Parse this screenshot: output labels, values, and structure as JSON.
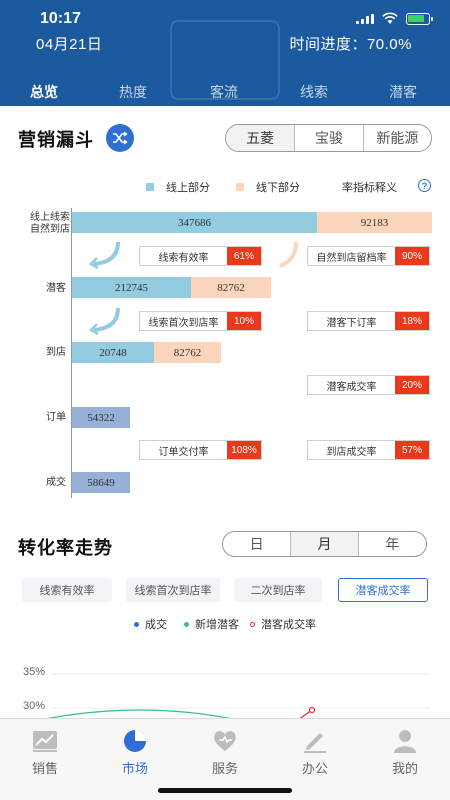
{
  "status": {
    "time": "10:17"
  },
  "header": {
    "date": "04月21日",
    "progress": "时间进度：70.0%",
    "tabs": [
      "总览",
      "热度",
      "客流",
      "线索",
      "潜客"
    ],
    "active_tab": 0
  },
  "funnel": {
    "title": "营销漏斗",
    "brands": [
      "五菱",
      "宝骏",
      "新能源"
    ],
    "legend": {
      "online": "线上部分",
      "offline": "线下部分",
      "definition": "率指标释义",
      "help": "?"
    },
    "rows": {
      "leads": {
        "label_line1": "线上线索",
        "label_line2": "自然到店",
        "online": "347686",
        "offline": "92183"
      },
      "prospects": {
        "label": "潜客",
        "online": "212745",
        "offline": "82762"
      },
      "visits": {
        "label": "到店",
        "online": "20748",
        "offline": "82762"
      },
      "orders": {
        "label": "订单",
        "value": "54322"
      },
      "deals": {
        "label": "成交",
        "value": "58649"
      }
    },
    "rates": {
      "lead_valid": {
        "label": "线索有效率",
        "value": "61%"
      },
      "natural_retain": {
        "label": "自然到店留档率",
        "value": "90%"
      },
      "lead_first_visit": {
        "label": "线索首次到店率",
        "value": "10%"
      },
      "prospect_order": {
        "label": "潜客下订率",
        "value": "18%"
      },
      "prospect_deal": {
        "label": "潜客成交率",
        "value": "20%"
      },
      "order_delivery": {
        "label": "订单交付率",
        "value": "108%"
      },
      "visit_deal": {
        "label": "到店成交率",
        "value": "57%"
      }
    },
    "colors": {
      "online": "#93cbe0",
      "offline": "#fbd6bd",
      "single": "#96b0d8",
      "rate": "#e8391b"
    }
  },
  "trend": {
    "title": "转化率走势",
    "periods": [
      "日",
      "月",
      "年"
    ],
    "metrics": [
      "线索有效率",
      "线索首次到店率",
      "二次到店率",
      "潜客成交率"
    ],
    "legend": [
      "成交",
      "新增潜客",
      "潜客成交率"
    ],
    "yticks": [
      "35%",
      "30%"
    ]
  },
  "bottom_nav": {
    "items": [
      "销售",
      "市场",
      "服务",
      "办公",
      "我的"
    ],
    "icons": [
      "chart-icon",
      "pie-icon",
      "heart-icon",
      "pen-icon",
      "person-icon"
    ],
    "active": 1
  }
}
